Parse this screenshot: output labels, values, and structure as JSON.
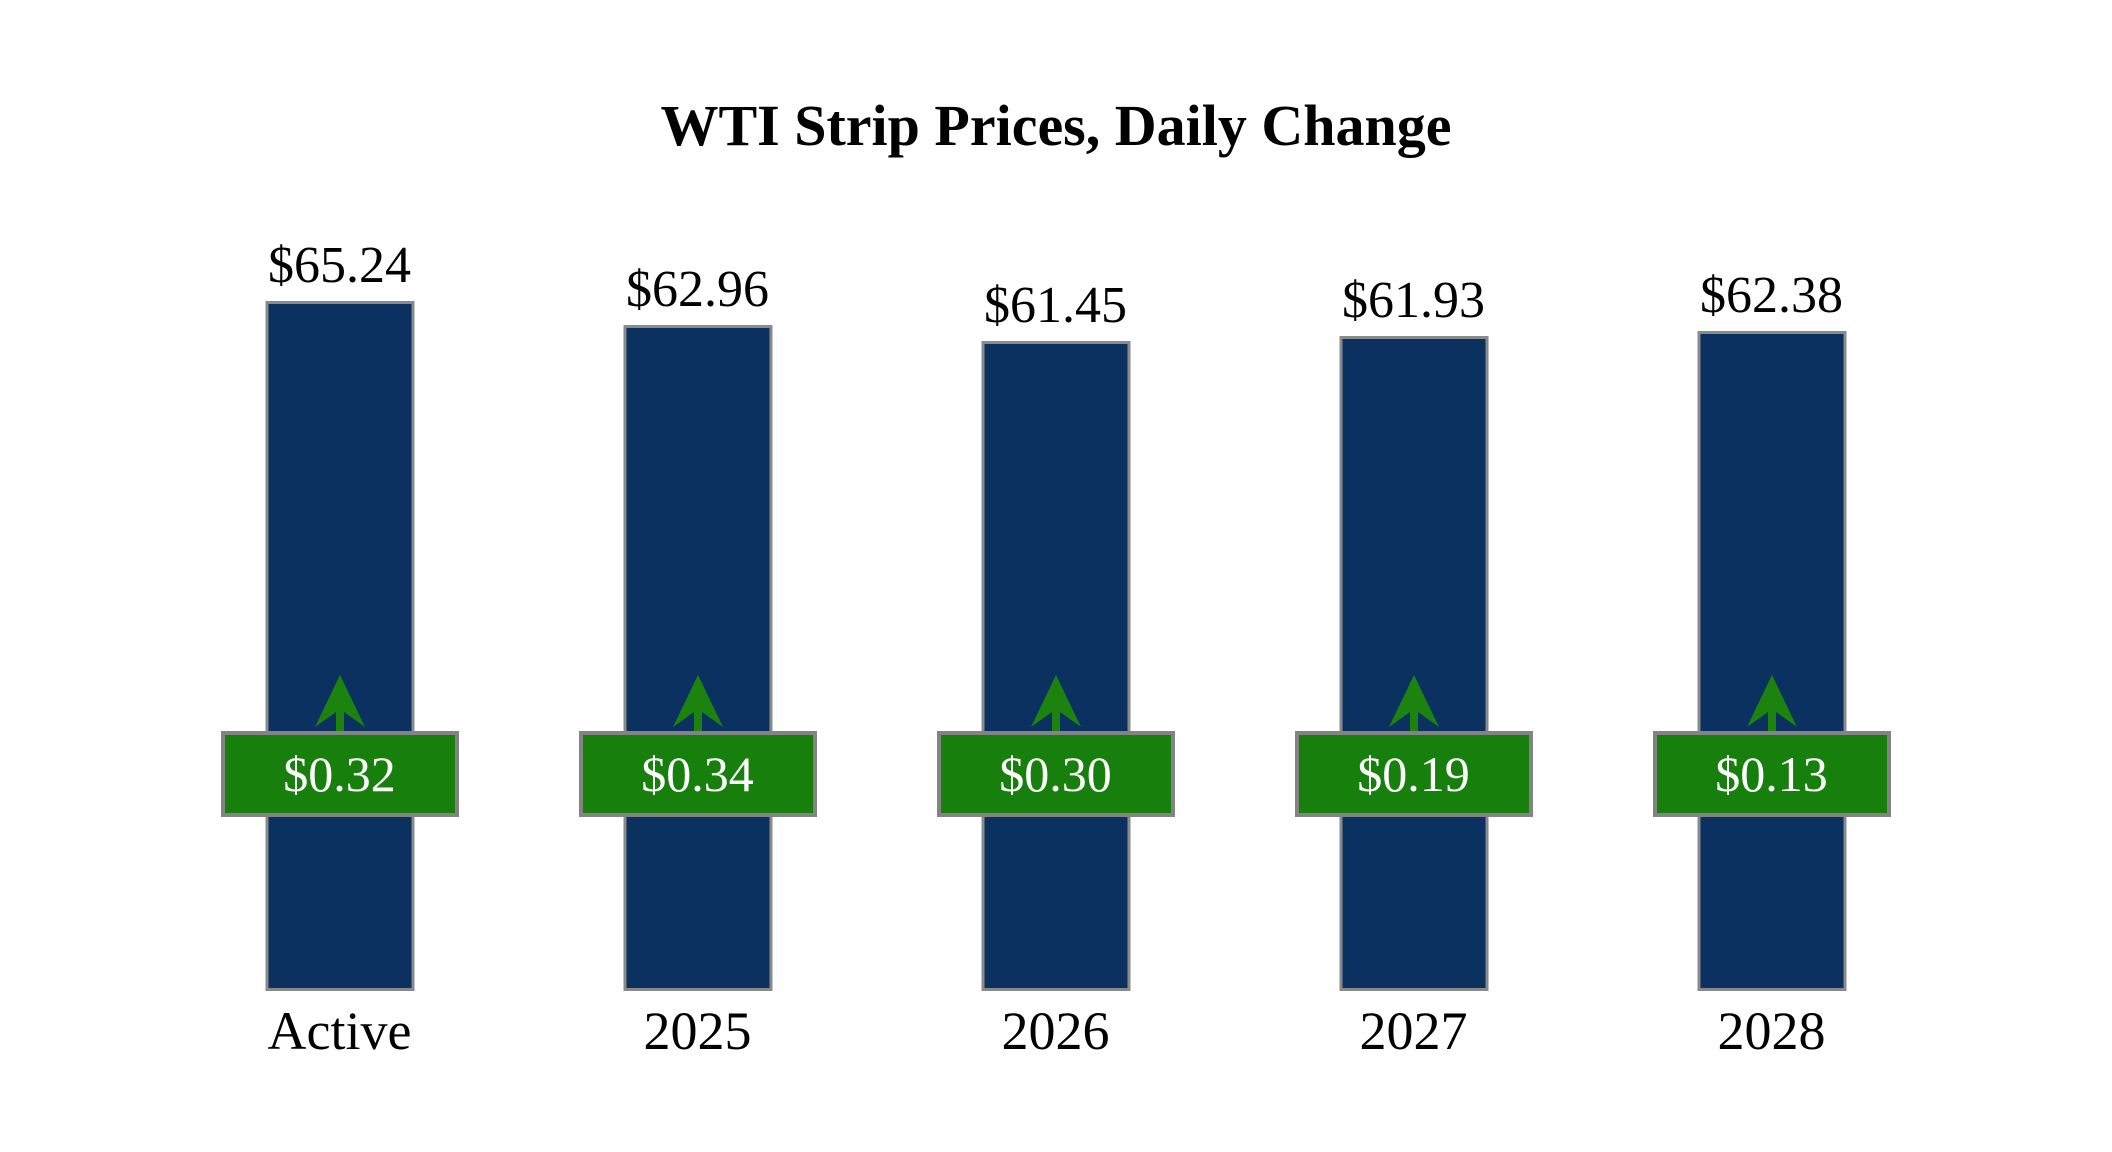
{
  "title": "WTI Strip Prices, Daily Change",
  "chart_data": {
    "type": "bar",
    "title": "WTI Strip Prices, Daily Change",
    "categories": [
      "Active",
      "2025",
      "2026",
      "2027",
      "2028"
    ],
    "series": [
      {
        "name": "strip_price",
        "unit": "$ per barrel",
        "values": [
          65.24,
          62.96,
          61.45,
          61.93,
          62.38
        ],
        "labels": [
          "$65.24",
          "$62.96",
          "$61.45",
          "$61.93",
          "$62.38"
        ]
      },
      {
        "name": "daily_change",
        "unit": "$ per barrel",
        "values": [
          0.32,
          0.34,
          0.3,
          0.19,
          0.13
        ],
        "labels": [
          "$0.32",
          "$0.34",
          "$0.30",
          "$0.19",
          "$0.13"
        ]
      }
    ],
    "ylim": [
      0,
      65.24
    ],
    "grid": false,
    "legend": "none",
    "axes_visible": false,
    "change_direction": "up",
    "colors": {
      "bar_fill": "#0b3160",
      "bar_border": "#8a8a8a",
      "badge_fill": "#17800c",
      "badge_border": "#838383",
      "badge_text": "#ffffff",
      "arrow": "#1c830f",
      "label_text": "#000000",
      "background": "#ffffff"
    }
  }
}
